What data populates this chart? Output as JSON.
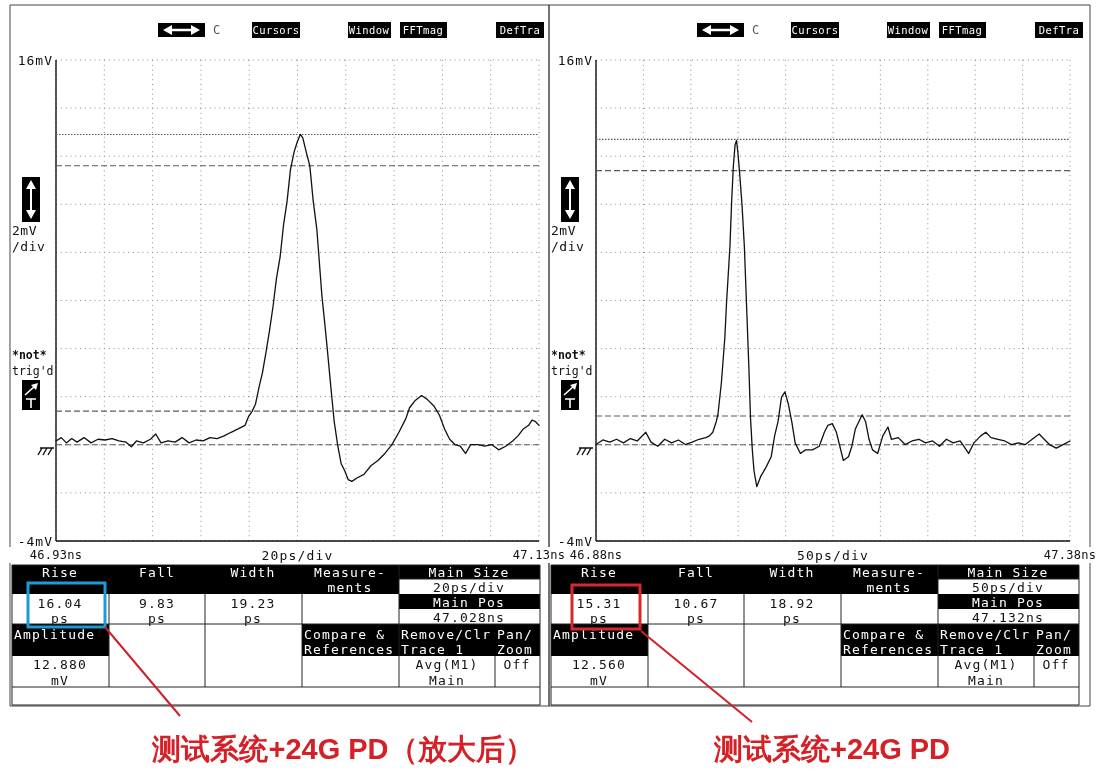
{
  "chart_data": [
    {
      "type": "line",
      "title": "测试系统+24G PD（放大后）",
      "xlabel": "20ps/div",
      "ylabel": "2mV\n/div",
      "x": [
        46.93,
        46.9322,
        46.9343,
        46.9365,
        46.9387,
        46.9416,
        46.9445,
        46.9474,
        46.9503,
        46.9532,
        46.9561,
        46.959,
        46.9612,
        46.9633,
        46.9662,
        46.9691,
        46.9713,
        46.9735,
        46.9764,
        46.9793,
        46.9822,
        46.9851,
        46.988,
        46.9909,
        46.9938,
        46.9967,
        46.9996,
        47.0025,
        47.0054,
        47.0083,
        47.0097,
        47.0112,
        47.0126,
        47.0141,
        47.0155,
        47.017,
        47.0184,
        47.0199,
        47.0213,
        47.0228,
        47.0242,
        47.0257,
        47.0271,
        47.0286,
        47.03,
        47.0312,
        47.0322,
        47.0336,
        47.0351,
        47.0365,
        47.038,
        47.039,
        47.0401,
        47.0413,
        47.0423,
        47.0438,
        47.0452,
        47.0467,
        47.0481,
        47.0496,
        47.051,
        47.0525,
        47.0546,
        47.0575,
        47.0604,
        47.0633,
        47.0662,
        47.0691,
        47.072,
        47.0749,
        47.0764,
        47.0786,
        47.0814,
        47.0836,
        47.0865,
        47.0887,
        47.0909,
        47.093,
        47.0952,
        47.0974,
        47.0996,
        47.1017,
        47.1046,
        47.1075,
        47.1104,
        47.1133,
        47.1162,
        47.1191,
        47.1213,
        47.1235,
        47.1257,
        47.1271,
        47.1286,
        47.13
      ],
      "series": [
        {
          "color": "#111111",
          "values": [
            0.16,
            0.3,
            0.08,
            0.26,
            0.11,
            0.3,
            0.08,
            0.23,
            0.2,
            0.26,
            0.16,
            0.11,
            -0.08,
            0.16,
            0.08,
            0.23,
            0.45,
            0.08,
            0.16,
            0.11,
            0.3,
            0.08,
            0.2,
            0.16,
            0.3,
            0.26,
            0.37,
            0.52,
            0.66,
            0.81,
            1.17,
            1.39,
            1.69,
            2.41,
            3.0,
            3.87,
            4.75,
            5.77,
            6.93,
            7.81,
            9.12,
            10.14,
            11.45,
            12.18,
            12.62,
            12.91,
            12.76,
            12.18,
            11.6,
            10.14,
            8.97,
            7.66,
            6.2,
            5.04,
            4.02,
            2.41,
            0.96,
            -0.06,
            -0.79,
            -1.09,
            -1.45,
            -1.52,
            -1.38,
            -1.23,
            -0.87,
            -0.65,
            -0.36,
            0.01,
            0.52,
            1.1,
            1.54,
            1.83,
            2.05,
            1.9,
            1.61,
            1.25,
            0.66,
            0.23,
            0.01,
            -0.06,
            -0.36,
            0.01,
            0.01,
            -0.06,
            0.01,
            -0.21,
            -0.06,
            0.16,
            0.37,
            0.66,
            0.81,
            1.03,
            0.96,
            0.81
          ]
        }
      ],
      "xlim": [
        46.93,
        47.13
      ],
      "xticks": [
        {
          "value": 46.93,
          "label": "46.93ns"
        },
        {
          "value": 46.95,
          "label": null
        },
        {
          "value": 46.97,
          "label": null
        },
        {
          "value": 46.99,
          "label": null
        },
        {
          "value": 47.01,
          "label": null
        },
        {
          "value": 47.03,
          "label": null
        },
        {
          "value": 47.05,
          "label": null
        },
        {
          "value": 47.07,
          "label": null
        },
        {
          "value": 47.09,
          "label": null
        },
        {
          "value": 47.11,
          "label": null
        },
        {
          "value": 47.13,
          "label": "47.13ns"
        }
      ],
      "ylim": [
        -4,
        16
      ],
      "yticks": [
        {
          "value": 16,
          "label": "16mV"
        },
        {
          "value": 14,
          "label": null
        },
        {
          "value": 12,
          "label": null
        },
        {
          "value": 10,
          "label": null
        },
        {
          "value": 8,
          "label": null
        },
        {
          "value": 6,
          "label": null
        },
        {
          "value": 4,
          "label": null
        },
        {
          "value": 2,
          "label": null
        },
        {
          "value": 0,
          "label": null
        },
        {
          "value": -2,
          "label": null
        },
        {
          "value": -4,
          "label": "-4mV"
        }
      ],
      "grid": true,
      "ref_lines": [
        {
          "axis": "y",
          "value": 12.9,
          "line_style": "dotted"
        },
        {
          "axis": "y",
          "value": 11.6,
          "line_style": "dashed"
        },
        {
          "axis": "y",
          "value": 1.4,
          "line_style": "dashed"
        },
        {
          "axis": "y",
          "value": 0,
          "line_style": "dashed"
        }
      ],
      "annotations": [
        "C",
        "Cursors",
        "Window",
        "FFTmag",
        "DefTra",
        "*not*\ntrig'd",
        "Rise",
        "Fall",
        "Width",
        "Measure-\nments",
        "Main Size",
        "20ps/div",
        "Main Pos",
        "47.028ns",
        "16.04\nps",
        "9.83\nps",
        "19.23\nps",
        "Amplitude",
        "Compare &\nReferences",
        "Remove/Clr\nTrace 1",
        "Pan/\nZoom",
        "12.880\nmV",
        "Avg(M1)\nMain",
        "Off"
      ]
    },
    {
      "type": "line",
      "title": "测试系统+24G PD",
      "xlabel": "50ps/div",
      "ylabel": "2mV\n/div",
      "x": [
        46.88,
        46.8872,
        46.8945,
        46.9017,
        46.909,
        46.9162,
        46.9235,
        46.9325,
        46.938,
        46.9452,
        46.9525,
        46.9597,
        46.967,
        46.9742,
        46.9814,
        46.9887,
        46.9959,
        46.9996,
        47.0032,
        47.0068,
        47.0086,
        47.0122,
        47.0159,
        47.0177,
        47.0213,
        47.0231,
        47.0249,
        47.0267,
        47.0282,
        47.0296,
        47.0315,
        47.034,
        47.0365,
        47.0387,
        47.0412,
        47.043,
        47.0449,
        47.0467,
        47.0496,
        47.0539,
        47.0593,
        47.0648,
        47.0684,
        47.072,
        47.0757,
        47.0793,
        47.0829,
        47.0865,
        47.0901,
        47.0956,
        47.101,
        47.1083,
        47.1155,
        47.1209,
        47.1246,
        47.1293,
        47.1336,
        47.1372,
        47.1409,
        47.1463,
        47.1499,
        47.1536,
        47.1572,
        47.1608,
        47.1644,
        47.168,
        47.1717,
        47.1771,
        47.1825,
        47.188,
        47.1916,
        47.1988,
        47.2061,
        47.2133,
        47.2206,
        47.2278,
        47.2351,
        47.2423,
        47.2496,
        47.2568,
        47.2641,
        47.2731,
        47.2786,
        47.2858,
        47.2912,
        47.2967,
        47.3039,
        47.3112,
        47.3184,
        47.3257,
        47.3329,
        47.3401,
        47.3474,
        47.3528,
        47.3583,
        47.3655,
        47.3728,
        47.38
      ],
      "series": [
        {
          "color": "#111111",
          "values": [
            0.01,
            0.2,
            0.11,
            0.23,
            0.08,
            0.26,
            0.16,
            0.52,
            0.11,
            -0.06,
            0.23,
            0.08,
            0.2,
            0.01,
            0.11,
            0.23,
            0.3,
            0.37,
            0.52,
            0.96,
            1.25,
            2.56,
            4.45,
            5.91,
            8.25,
            10.14,
            11.6,
            12.47,
            12.66,
            12.18,
            11.31,
            9.99,
            8.25,
            5.91,
            3.29,
            1.1,
            -0.21,
            -1.09,
            -1.74,
            -1.3,
            -0.94,
            -0.5,
            0.37,
            0.96,
            1.98,
            2.2,
            1.69,
            0.96,
            0.08,
            -0.36,
            -0.21,
            -0.21,
            -0.06,
            0.52,
            0.81,
            0.88,
            0.52,
            -0.06,
            -0.65,
            -0.5,
            -0.06,
            0.66,
            0.96,
            1.25,
            0.96,
            0.23,
            -0.21,
            -0.36,
            0.37,
            0.74,
            0.23,
            0.3,
            0.01,
            0.16,
            0.23,
            0.08,
            0.16,
            -0.06,
            0.23,
            0.08,
            0.16,
            -0.36,
            0.08,
            0.37,
            0.52,
            0.3,
            0.23,
            0.16,
            0.01,
            0.08,
            0.01,
            0.23,
            0.45,
            0.23,
            0.01,
            -0.14,
            0.01,
            0.16
          ]
        }
      ],
      "xlim": [
        46.88,
        47.38
      ],
      "xticks": [
        {
          "value": 46.88,
          "label": "46.88ns"
        },
        {
          "value": 46.93,
          "label": null
        },
        {
          "value": 46.98,
          "label": null
        },
        {
          "value": 47.03,
          "label": null
        },
        {
          "value": 47.08,
          "label": null
        },
        {
          "value": 47.13,
          "label": null
        },
        {
          "value": 47.18,
          "label": null
        },
        {
          "value": 47.23,
          "label": null
        },
        {
          "value": 47.28,
          "label": null
        },
        {
          "value": 47.33,
          "label": null
        },
        {
          "value": 47.38,
          "label": "47.38ns"
        }
      ],
      "ylim": [
        -4,
        16
      ],
      "yticks": [
        {
          "value": 16,
          "label": "16mV"
        },
        {
          "value": 14,
          "label": null
        },
        {
          "value": 12,
          "label": null
        },
        {
          "value": 10,
          "label": null
        },
        {
          "value": 8,
          "label": null
        },
        {
          "value": 6,
          "label": null
        },
        {
          "value": 4,
          "label": null
        },
        {
          "value": 2,
          "label": null
        },
        {
          "value": 0,
          "label": null
        },
        {
          "value": -2,
          "label": null
        },
        {
          "value": -4,
          "label": "-4mV"
        }
      ],
      "grid": true,
      "ref_lines": [
        {
          "axis": "y",
          "value": 12.7,
          "line_style": "dotted"
        },
        {
          "axis": "y",
          "value": 11.4,
          "line_style": "dashed"
        },
        {
          "axis": "y",
          "value": 1.2,
          "line_style": "dashed"
        },
        {
          "axis": "y",
          "value": 0,
          "line_style": "dashed"
        }
      ],
      "annotations": [
        "C",
        "Cursors",
        "Window",
        "FFTmag",
        "DefTra",
        "*not*\ntrig'd",
        "Rise",
        "Fall",
        "Width",
        "Measure-\nments",
        "Main Size",
        "50ps/div",
        "Main Pos",
        "47.132ns",
        "15.31\nps",
        "10.67\nps",
        "18.92\nps",
        "Amplitude",
        "Compare &\nReferences",
        "Remove/Clr\nTrace 1",
        "Pan/\nZoom",
        "12.560\nmV",
        "Avg(M1)\nMain",
        "Off"
      ]
    }
  ]
}
